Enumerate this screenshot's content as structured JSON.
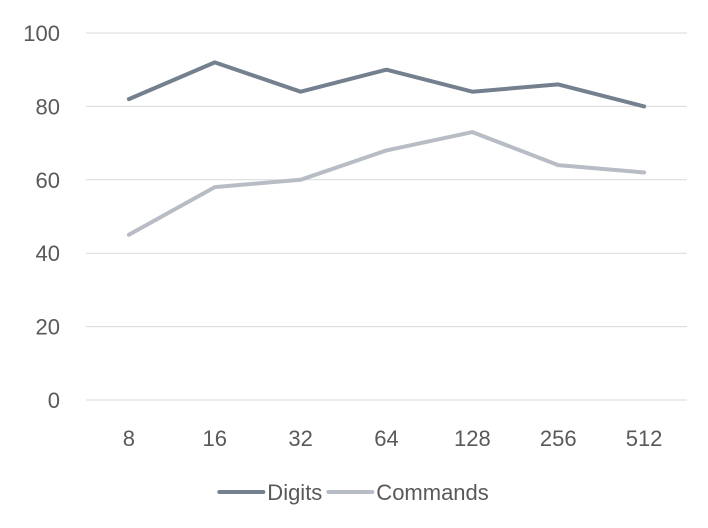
{
  "chart_data": {
    "type": "line",
    "title": "",
    "xlabel": "",
    "ylabel": "",
    "categories": [
      "8",
      "16",
      "32",
      "64",
      "128",
      "256",
      "512"
    ],
    "ylim": [
      0,
      100
    ],
    "yticks": [
      0,
      20,
      40,
      60,
      80,
      100
    ],
    "grid": true,
    "legend_position": "bottom",
    "series": [
      {
        "name": "Digits",
        "color": "#75808f",
        "values": [
          82,
          92,
          84,
          90,
          84,
          86,
          80
        ]
      },
      {
        "name": "Commands",
        "color": "#b8bcc4",
        "values": [
          45,
          58,
          60,
          68,
          73,
          64,
          62
        ]
      }
    ]
  }
}
